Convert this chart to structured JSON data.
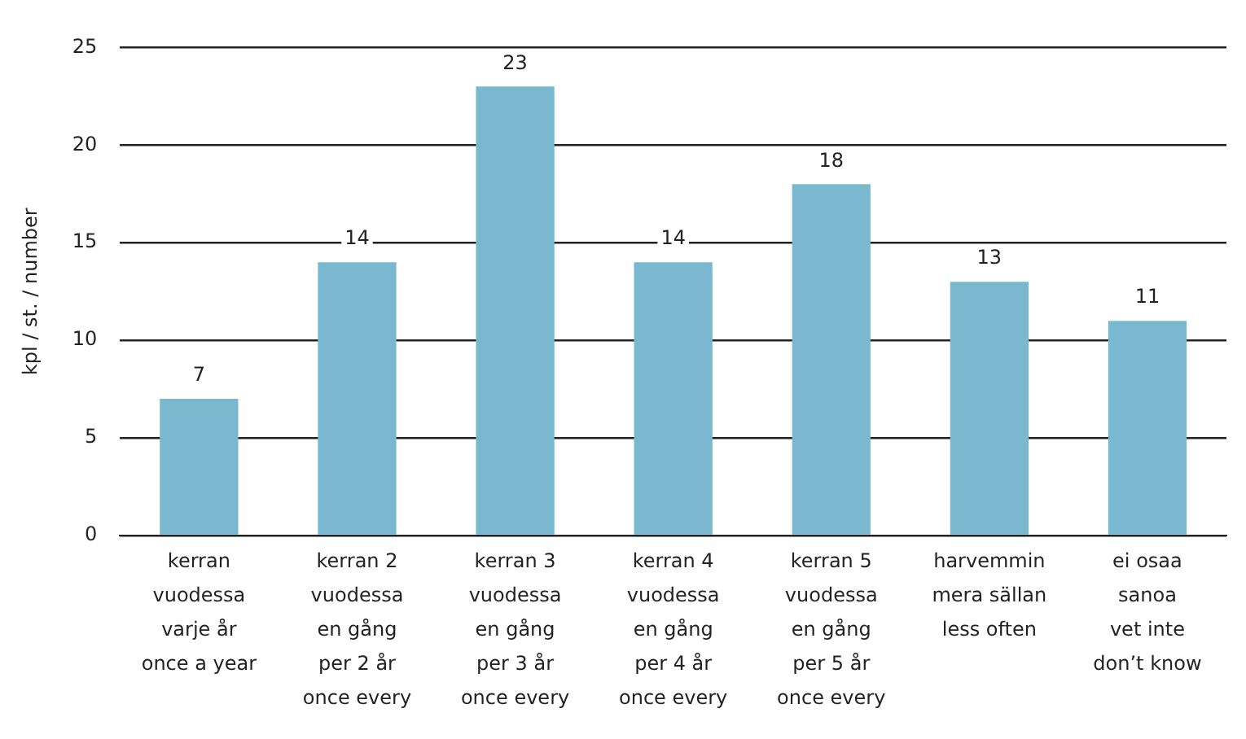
{
  "chart_data": {
    "type": "bar",
    "ylabel": "kpl / st. / number",
    "categories": [
      "kerran\nvuodessa\nvarje år\nonce a year",
      "kerran 2\nvuodessa\nen gång\nper 2 år\nonce every",
      "kerran 3\nvuodessa\nen gång\nper 3 år\nonce every",
      "kerran 4\nvuodessa\nen gång\nper 4 år\nonce every",
      "kerran 5\nvuodessa\nen gång\nper 5 år\nonce every",
      "harvemmin\nmera sällan\nless often",
      "ei osaa\nsanoa\nvet inte\ndon’t know"
    ],
    "values": [
      7,
      14,
      23,
      14,
      18,
      13,
      11
    ],
    "color": "#7ab8d0",
    "ylim": [
      0,
      25
    ],
    "yticks": [
      0,
      5,
      10,
      15,
      20,
      25
    ],
    "grid": "y",
    "data_labels": true
  }
}
